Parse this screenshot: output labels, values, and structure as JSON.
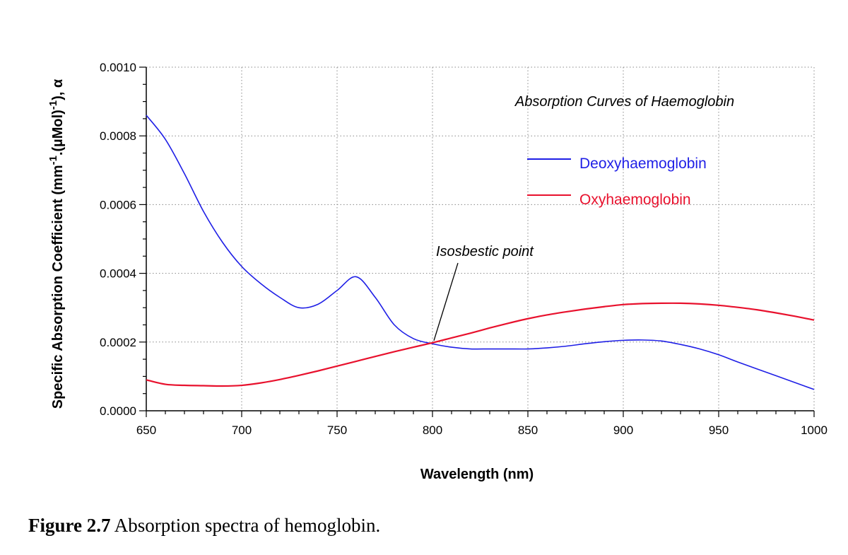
{
  "chart_data": {
    "type": "line",
    "title": "Absorption Curves of Haemoglobin",
    "xlabel": "Wavelength (nm)",
    "ylabel": "Specific Absorption Coefficient (mm-1.(µMol)-1), α",
    "ylabel_parts": {
      "base": "Specific Absorption Coefficient (mm",
      "sup1": "-1",
      "mid": ".(µMol)",
      "sup2": "-1",
      "tail": "), α"
    },
    "xlim": [
      650,
      1000
    ],
    "ylim": [
      0,
      0.001
    ],
    "xticks": [
      650,
      700,
      750,
      800,
      850,
      900,
      950,
      1000
    ],
    "yticks": [
      0.0,
      0.0002,
      0.0004,
      0.0006,
      0.0008,
      0.001
    ],
    "ytick_labels": [
      "0.0000",
      "0.0002",
      "0.0004",
      "0.0006",
      "0.0008",
      "0.0010"
    ],
    "grid": true,
    "legend_position": "right",
    "series": [
      {
        "name": "Deoxyhaemoglobin",
        "color": "#1f1fe6",
        "x": [
          650,
          660,
          670,
          680,
          690,
          700,
          710,
          720,
          730,
          740,
          750,
          760,
          770,
          780,
          790,
          800,
          810,
          820,
          830,
          840,
          850,
          860,
          870,
          880,
          890,
          900,
          910,
          920,
          930,
          940,
          950,
          960,
          970,
          980,
          990,
          1000
        ],
        "y": [
          0.00086,
          0.00079,
          0.00069,
          0.00058,
          0.00049,
          0.00042,
          0.00037,
          0.00033,
          0.0003,
          0.00031,
          0.00035,
          0.00039,
          0.00033,
          0.00025,
          0.00021,
          0.000195,
          0.000185,
          0.00018,
          0.00018,
          0.00018,
          0.00018,
          0.000183,
          0.000188,
          0.000195,
          0.000201,
          0.000205,
          0.000206,
          0.000203,
          0.000193,
          0.00018,
          0.000163,
          0.000142,
          0.000122,
          0.000102,
          8.2e-05,
          6.2e-05
        ]
      },
      {
        "name": "Oxyhaemoglobin",
        "color": "#e8112d",
        "x": [
          650,
          660,
          670,
          680,
          690,
          700,
          710,
          720,
          730,
          740,
          750,
          760,
          770,
          780,
          790,
          800,
          810,
          820,
          830,
          840,
          850,
          860,
          870,
          880,
          890,
          900,
          910,
          920,
          930,
          940,
          950,
          960,
          970,
          980,
          990,
          1000
        ],
        "y": [
          9e-05,
          7.7e-05,
          7.4e-05,
          7.3e-05,
          7.2e-05,
          7.4e-05,
          8.1e-05,
          9.1e-05,
          0.000103,
          0.000116,
          0.00013,
          0.000144,
          0.000158,
          0.000172,
          0.000185,
          0.000198,
          0.000212,
          0.000226,
          0.000241,
          0.000255,
          0.000268,
          0.000279,
          0.000288,
          0.000296,
          0.000303,
          0.000309,
          0.000312,
          0.000313,
          0.000313,
          0.000311,
          0.000307,
          0.000301,
          0.000294,
          0.000285,
          0.000275,
          0.000264
        ]
      }
    ],
    "annotations": [
      {
        "text": "Isosbestic point",
        "x": 800,
        "y": 0.0002
      }
    ]
  },
  "caption": {
    "label": "Figure 2.7",
    "text": " Absorption spectra of hemoglobin."
  }
}
